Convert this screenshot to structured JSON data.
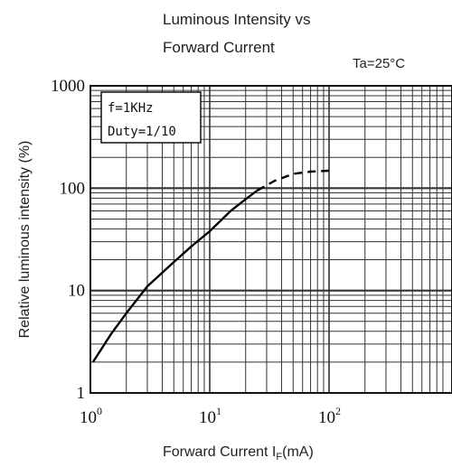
{
  "chart_data": {
    "type": "line",
    "title_lines": [
      "Luminous Intensity vs",
      "Forward Current"
    ],
    "condition": "Ta=25°C",
    "xlabel": {
      "main": "Forward Current  I",
      "sub": "F",
      "unit": "(mA)"
    },
    "ylabel": "Relative luminous intensity  (%)",
    "x_scale": "log",
    "y_scale": "log",
    "xlim": [
      1,
      300
    ],
    "ylim": [
      1,
      1000
    ],
    "x_ticks": [
      {
        "base": "10",
        "exp": "0",
        "value": 1
      },
      {
        "base": "10",
        "exp": "1",
        "value": 10
      },
      {
        "base": "10",
        "exp": "2",
        "value": 100
      }
    ],
    "y_ticks": [
      {
        "label": "1",
        "value": 1
      },
      {
        "label": "10",
        "value": 10
      },
      {
        "label": "100",
        "value": 100
      },
      {
        "label": "1000",
        "value": 1000
      }
    ],
    "grid": true,
    "annotation_lines": [
      "f=1KHz",
      "Duty=1/10"
    ],
    "series": [
      {
        "style": "solid",
        "x": [
          1.05,
          1.5,
          2,
          3,
          5,
          7,
          10,
          15,
          20,
          25
        ],
        "y": [
          2,
          3.8,
          6,
          11,
          19,
          27,
          38,
          60,
          78,
          95
        ]
      },
      {
        "style": "dashed",
        "x": [
          25,
          35,
          50,
          70,
          100
        ],
        "y": [
          95,
          118,
          138,
          145,
          148
        ]
      }
    ]
  }
}
